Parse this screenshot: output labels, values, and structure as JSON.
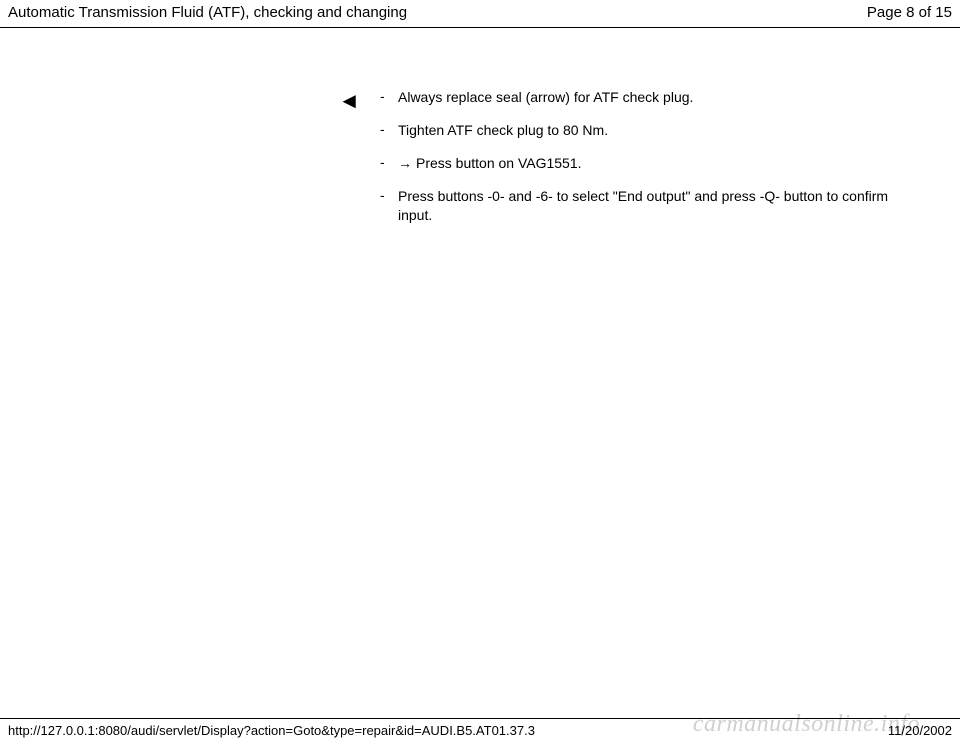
{
  "header": {
    "title": "Automatic Transmission Fluid (ATF), checking and changing",
    "page": "Page 8 of 15"
  },
  "marker": {
    "symbol": "◄"
  },
  "instructions": [
    {
      "bullet": "-",
      "arrow": "",
      "text": "Always replace seal (arrow) for ATF check plug."
    },
    {
      "bullet": "-",
      "arrow": "",
      "text": "Tighten ATF check plug to 80 Nm."
    },
    {
      "bullet": "-",
      "arrow": "→",
      "text": "Press button on VAG1551."
    },
    {
      "bullet": "-",
      "arrow": "",
      "text": "Press buttons -0- and -6- to select \"End output\" and press -Q- button to confirm input."
    }
  ],
  "footer": {
    "url": "http://127.0.0.1:8080/audi/servlet/Display?action=Goto&type=repair&id=AUDI.B5.AT01.37.3",
    "date": "11/20/2002"
  },
  "watermark": {
    "text": "carmanualsonline.info"
  },
  "colors": {
    "text": "#000000",
    "background": "#ffffff",
    "border": "#000000",
    "watermark": "#d0d0d0"
  }
}
